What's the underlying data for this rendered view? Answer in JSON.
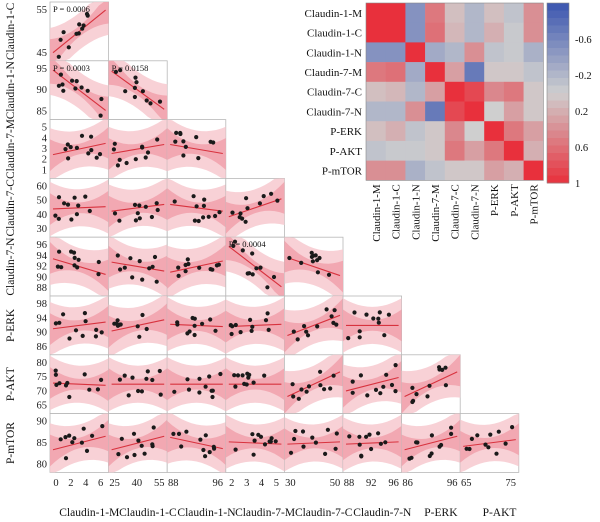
{
  "variables": [
    "Claudin-1-M",
    "Claudin-1-C",
    "Claudin-1-N",
    "Claudin-7-M",
    "Claudin-7-C",
    "Claudin-7-N",
    "P-ERK",
    "P-AKT",
    "P-mTOR"
  ],
  "row_labels": [
    "Claudin-1-C",
    "Claudin-1-N",
    "Claudin-7-M",
    "Claudin-7-C",
    "Claudin-7-N",
    "P-ERK",
    "P-AKT",
    "P-mTOR"
  ],
  "col_labels": [
    "Claudin-1-M",
    "Claudin-1-C",
    "Claudin-1-N",
    "Claudin-7-M",
    "Claudin-7-C",
    "Claudin-7-N",
    "P-ERK",
    "P-AKT"
  ],
  "y_ticks": [
    [
      "55",
      "45"
    ],
    [
      "95",
      "90",
      "85"
    ],
    [
      "5",
      "4",
      "3",
      "2",
      "1"
    ],
    [
      "60",
      "50",
      "40",
      "30"
    ],
    [
      "96",
      "94",
      "92",
      "90",
      "88"
    ],
    [
      "98",
      "94",
      "90",
      "86"
    ],
    [
      "80",
      "75",
      "70",
      "65"
    ],
    [
      "90",
      "85",
      "80"
    ]
  ],
  "x_ticks": [
    [
      "0",
      "2",
      "4",
      "6"
    ],
    [
      "25",
      "40",
      "55"
    ],
    [
      "88",
      "96"
    ],
    [
      "2",
      "3",
      "4",
      "5"
    ],
    [
      "30",
      "50"
    ],
    [
      "88",
      "92",
      "96"
    ],
    [
      "86",
      "96"
    ],
    [
      "65",
      "75"
    ]
  ],
  "p_labels": [
    {
      "row": 0,
      "col": 0,
      "text": "P = 0.0006"
    },
    {
      "row": 1,
      "col": 0,
      "text": "P = 0.0003"
    },
    {
      "row": 1,
      "col": 1,
      "text": "P = 0.0158"
    },
    {
      "row": 4,
      "col": 3,
      "text": "P = 0.0004"
    }
  ],
  "colors": {
    "fit_line": "#d8323e",
    "band_outer": "#f7c9cf",
    "band_inner": "#f09aa6",
    "point": "#1a1a1a",
    "heat_positive": "#e8303c",
    "heat_negative": "#3a55b0",
    "heat_neutral": "#cfcfcf"
  },
  "chart_data": [
    {
      "type": "scatter",
      "description": "Pairwise scatter matrix (lower triangle) with linear fit and confidence bands",
      "slopes": [
        [
          0.95
        ],
        [
          -0.9,
          -0.85
        ],
        [
          0.25,
          0.2,
          -0.2
        ],
        [
          0.05,
          0.15,
          -0.15,
          0.4
        ],
        [
          -0.35,
          -0.2,
          0.25,
          -0.9,
          -0.4
        ],
        [
          0.15,
          0.25,
          -0.05,
          0.05,
          0.45,
          0.0
        ],
        [
          -0.05,
          0.0,
          0.0,
          0.0,
          0.55,
          0.3,
          0.55
        ],
        [
          0.3,
          0.3,
          -0.25,
          -0.05,
          0.05,
          0.05,
          0.3,
          0.15
        ]
      ]
    },
    {
      "type": "heatmap",
      "description": "Correlation matrix heatmap",
      "labels": [
        "Claudin-1-M",
        "Claudin-1-C",
        "Claudin-1-N",
        "Claudin-7-M",
        "Claudin-7-C",
        "Claudin-7-N",
        "P-ERK",
        "P-AKT",
        "P-mTOR"
      ],
      "matrix": [
        [
          1.0,
          1.0,
          -0.5,
          0.55,
          0.1,
          -0.2,
          0.1,
          -0.1,
          0.4
        ],
        [
          1.0,
          1.0,
          -0.5,
          0.6,
          0.15,
          -0.2,
          0.2,
          -0.05,
          0.4
        ],
        [
          -0.5,
          -0.5,
          1.0,
          -0.3,
          -0.2,
          0.4,
          -0.1,
          -0.05,
          -0.25
        ],
        [
          0.55,
          0.6,
          -0.3,
          1.0,
          0.3,
          -0.7,
          0.05,
          0.05,
          -0.1
        ],
        [
          0.1,
          0.15,
          -0.2,
          0.3,
          1.0,
          0.85,
          0.45,
          0.55,
          0.05
        ],
        [
          -0.2,
          -0.2,
          0.4,
          -0.7,
          0.85,
          1.0,
          0.0,
          0.3,
          0.05
        ],
        [
          0.1,
          0.2,
          -0.1,
          0.05,
          0.45,
          0.0,
          1.0,
          0.55,
          0.3
        ],
        [
          -0.1,
          -0.05,
          -0.05,
          0.05,
          0.55,
          0.3,
          0.55,
          1.0,
          0.2
        ],
        [
          0.4,
          0.4,
          -0.25,
          -0.1,
          0.05,
          0.05,
          0.3,
          0.2,
          1.0
        ]
      ],
      "colorbar_ticks": [
        "-0.6",
        "-0.2",
        "0.2",
        "0.6",
        "1"
      ],
      "scale": [
        -1,
        1
      ]
    }
  ]
}
